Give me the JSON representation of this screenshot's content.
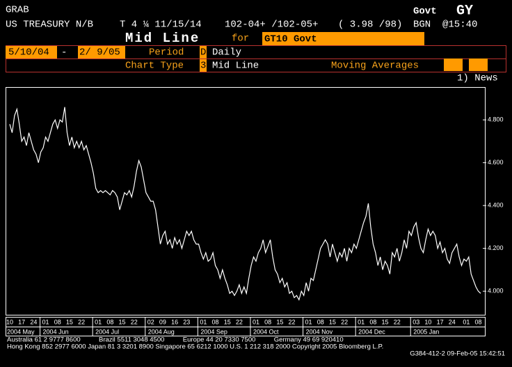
{
  "header": {
    "function": "GRAB",
    "sector": "Govt",
    "command": "GY",
    "security": "US TREASURY N/B",
    "coupon": "T 4 ¼ 11/15/14",
    "price": "102-04+ /102-05+",
    "yield": "( 3.98 /98)",
    "source": "BGN",
    "time": "@15:40"
  },
  "title": {
    "label": "Mid Line",
    "for": "for",
    "ticker": "GT10 Govt"
  },
  "settings": {
    "start_date": "5/10/04",
    "separator": "-",
    "end_date": "2/ 9/05",
    "period_label": "Period",
    "period_code": "D",
    "period": "Daily",
    "chart_type_label": "Chart Type",
    "chart_type_code": "3",
    "chart_type": "Mid Line",
    "moving_averages_label": "Moving Averages"
  },
  "menu": {
    "news": "1) News"
  },
  "chart": {
    "type": "line",
    "color": "#ffffff",
    "categories": [
      "10",
      null,
      null,
      null,
      null,
      "17",
      null,
      null,
      null,
      null,
      "24",
      null,
      null,
      null,
      null,
      "01",
      null,
      null,
      null,
      null,
      "08",
      null,
      null,
      null,
      null,
      "15",
      null,
      null,
      null,
      null,
      "22",
      null,
      null,
      null,
      null,
      null,
      null,
      "01",
      null,
      null,
      null,
      null,
      "08",
      null,
      null,
      null,
      null,
      "15",
      null,
      null,
      null,
      null,
      "22",
      null,
      null,
      null,
      null,
      null,
      null,
      "02",
      null,
      null,
      null,
      null,
      "09",
      null,
      null,
      null,
      null,
      "16",
      null,
      null,
      null,
      null,
      "23",
      null,
      null,
      null,
      null,
      null,
      null,
      "01",
      null,
      null,
      null,
      null,
      "08",
      null,
      null,
      null,
      null,
      "15",
      null,
      null,
      null,
      null,
      "22",
      null,
      null,
      null,
      null,
      null,
      null,
      "01",
      null,
      null,
      null,
      null,
      "08",
      null,
      null,
      null,
      null,
      "15",
      null,
      null,
      null,
      null,
      "22",
      null,
      null,
      null,
      null,
      null,
      null,
      "01",
      null,
      null,
      null,
      null,
      "08",
      null,
      null,
      null,
      null,
      "15",
      null,
      null,
      null,
      null,
      "22",
      null,
      null,
      null,
      null,
      null,
      null,
      "01",
      null,
      null,
      null,
      null,
      "08",
      null,
      null,
      null,
      null,
      "15",
      null,
      null,
      null,
      null,
      "22",
      null,
      null,
      null,
      null,
      null,
      null,
      null,
      "03",
      null,
      null,
      null,
      null,
      "10",
      null,
      null,
      null,
      null,
      "17",
      null,
      null,
      null,
      null,
      "24",
      null,
      null,
      null,
      null,
      null,
      "01",
      null,
      null,
      null,
      null,
      "08",
      null
    ],
    "month_categories": [
      "2004 May",
      null,
      null,
      null,
      null,
      null,
      null,
      null,
      null,
      null,
      null,
      null,
      null,
      null,
      null,
      "2004 Jun",
      null,
      null,
      null,
      null,
      null,
      null,
      null,
      null,
      null,
      null,
      null,
      null,
      null,
      null,
      null,
      null,
      null,
      null,
      null,
      null,
      null,
      "2004 Jul",
      null,
      null,
      null,
      null,
      null,
      null,
      null,
      null,
      null,
      null,
      null,
      null,
      null,
      null,
      null,
      null,
      null,
      null,
      null,
      null,
      null,
      "2004 Aug",
      null,
      null,
      null,
      null,
      null,
      null,
      null,
      null,
      null,
      null,
      null,
      null,
      null,
      null,
      null,
      null,
      null,
      null,
      null,
      null,
      null,
      "2004 Sep",
      null,
      null,
      null,
      null,
      null,
      null,
      null,
      null,
      null,
      null,
      null,
      null,
      null,
      null,
      null,
      null,
      null,
      null,
      null,
      null,
      null,
      "2004 Oct",
      null,
      null,
      null,
      null,
      null,
      null,
      null,
      null,
      null,
      null,
      null,
      null,
      null,
      null,
      null,
      null,
      null,
      null,
      null,
      null,
      null,
      "2004 Nov",
      null,
      null,
      null,
      null,
      null,
      null,
      null,
      null,
      null,
      null,
      null,
      null,
      null,
      null,
      null,
      null,
      null,
      null,
      null,
      null,
      null,
      "2004 Dec",
      null,
      null,
      null,
      null,
      null,
      null,
      null,
      null,
      null,
      null,
      null,
      null,
      null,
      null,
      null,
      null,
      null,
      null,
      null,
      null,
      null,
      null,
      "2005 Jan",
      null,
      null,
      null,
      null,
      null,
      null,
      null,
      null,
      null,
      null,
      null,
      null,
      null,
      null,
      null,
      null,
      null,
      null,
      null,
      null,
      null,
      null,
      null,
      null,
      null,
      null,
      null
    ],
    "values": [
      4.78,
      4.74,
      4.82,
      4.85,
      4.78,
      4.7,
      4.72,
      4.68,
      4.74,
      4.7,
      4.66,
      4.64,
      4.6,
      4.65,
      4.67,
      4.72,
      4.7,
      4.74,
      4.78,
      4.8,
      4.76,
      4.8,
      4.79,
      4.86,
      4.74,
      4.68,
      4.72,
      4.67,
      4.7,
      4.67,
      4.7,
      4.66,
      4.68,
      4.64,
      4.6,
      4.55,
      4.48,
      4.46,
      4.47,
      4.46,
      4.47,
      4.46,
      4.45,
      4.47,
      4.46,
      4.44,
      4.38,
      4.42,
      4.46,
      4.45,
      4.47,
      4.44,
      4.49,
      4.56,
      4.61,
      4.58,
      4.52,
      4.46,
      4.44,
      4.42,
      4.42,
      4.38,
      4.3,
      4.22,
      4.26,
      4.28,
      4.22,
      4.24,
      4.2,
      4.25,
      4.22,
      4.24,
      4.2,
      4.24,
      4.28,
      4.26,
      4.28,
      4.24,
      4.22,
      4.22,
      4.18,
      4.15,
      4.18,
      4.14,
      4.15,
      4.18,
      4.12,
      4.1,
      4.06,
      4.1,
      4.06,
      4.03,
      3.99,
      4.0,
      3.98,
      4.0,
      4.03,
      3.99,
      4.02,
      3.99,
      4.06,
      4.12,
      4.16,
      4.14,
      4.18,
      4.2,
      4.24,
      4.18,
      4.21,
      4.24,
      4.16,
      4.1,
      4.08,
      4.04,
      4.06,
      4.02,
      4.04,
      3.99,
      4.0,
      3.97,
      3.98,
      3.96,
      4.0,
      3.98,
      4.04,
      4.0,
      4.06,
      4.05,
      4.1,
      4.15,
      4.2,
      4.22,
      4.24,
      4.22,
      4.16,
      4.22,
      4.18,
      4.14,
      4.18,
      4.16,
      4.2,
      4.14,
      4.2,
      4.18,
      4.22,
      4.2,
      4.24,
      4.28,
      4.32,
      4.35,
      4.41,
      4.3,
      4.22,
      4.18,
      4.12,
      4.16,
      4.1,
      4.14,
      4.12,
      4.08,
      4.18,
      4.16,
      4.2,
      4.14,
      4.18,
      4.24,
      4.2,
      4.28,
      4.26,
      4.3,
      4.32,
      4.25,
      4.2,
      4.18,
      4.24,
      4.29,
      4.26,
      4.28,
      4.26,
      4.2,
      4.23,
      4.18,
      4.2,
      4.15,
      4.13,
      4.18,
      4.2,
      4.22,
      4.16,
      4.12,
      4.15,
      4.14,
      4.16,
      4.08,
      4.05,
      4.02,
      4.0,
      3.99
    ],
    "ylim": [
      3.89,
      4.95
    ],
    "yticks": [
      {
        "value": 4,
        "label": "4.000"
      },
      {
        "value": 4.2,
        "label": "4.200"
      },
      {
        "value": 4.4,
        "label": "4.400"
      },
      {
        "value": 4.6,
        "label": "4.600"
      },
      {
        "value": 4.8,
        "label": "4.800"
      }
    ]
  },
  "footer": {
    "lines": [
      "Australia 61 2 9777 8600          Brazil 5511 3048 4500          Europe 44 20 7330 7500          Germany 49 69 920410",
      "Hong Kong 852 2977 6000 Japan 81 3 3201 8900 Singapore 65 6212 1000 U.S. 1 212 318 2000 Copyright 2005 Bloomberg L.P.",
      "G384-412-2 09-Feb-05 15:42:51"
    ]
  }
}
